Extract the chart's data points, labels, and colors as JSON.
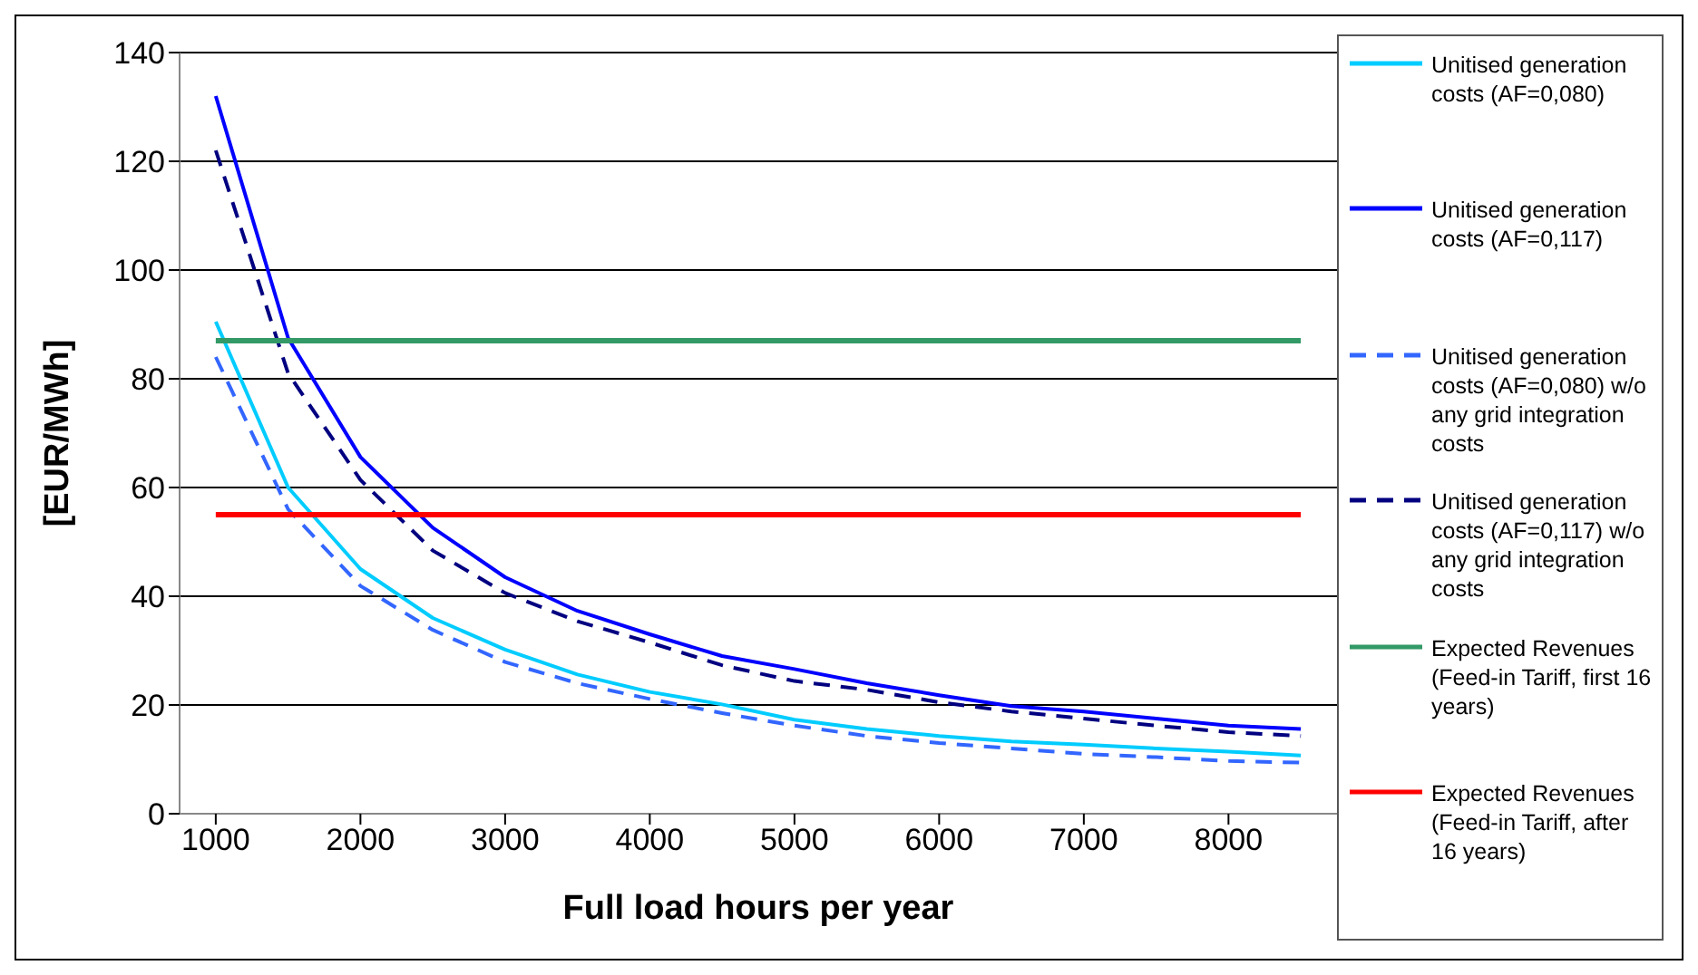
{
  "chart_data": {
    "type": "line",
    "xlabel": "Full load hours per year",
    "ylabel": "[EUR/MWh]",
    "x": [
      1000,
      1500,
      2000,
      2500,
      3000,
      3500,
      4000,
      4500,
      5000,
      5500,
      6000,
      6500,
      7000,
      7500,
      8000,
      8500
    ],
    "series": [
      {
        "name": "Unitised generation costs (AF=0,080)",
        "color": "#00ccff",
        "line_style": "solid",
        "values": [
          90.5,
          60,
          45,
          36,
          30.2,
          25.6,
          22.4,
          20.1,
          17.3,
          15.6,
          14.3,
          13.3,
          12.7,
          12,
          11.4,
          10.7
        ]
      },
      {
        "name": "Unitised generation costs (AF=0,117)",
        "color": "#0000ff",
        "line_style": "solid",
        "values": [
          132,
          87.5,
          65.6,
          52.6,
          43.5,
          37.3,
          33,
          29,
          26.6,
          24,
          21.8,
          19.8,
          18.8,
          17.5,
          16.2,
          15.6
        ]
      },
      {
        "name": "Unitised generation costs (AF=0,080) w/o any grid integration costs",
        "color": "#3366ff",
        "line_style": "dashed",
        "values": [
          84,
          56,
          41.9,
          33.8,
          27.9,
          24,
          21.1,
          18.5,
          16.2,
          14.3,
          13,
          12,
          11,
          10.4,
          9.7,
          9.4
        ]
      },
      {
        "name": "Unitised generation costs (AF=0,117) w/o any grid integration costs",
        "color": "#000080",
        "line_style": "dashed",
        "values": [
          122,
          81,
          61.4,
          48.4,
          40.6,
          35.4,
          31.5,
          27.3,
          24.4,
          22.8,
          20.5,
          18.8,
          17.5,
          16.2,
          15,
          14.3
        ]
      },
      {
        "name": "Expected Revenues (Feed-in Tariff, first 16 years)",
        "color": "#339966",
        "line_style": "solid",
        "values": [
          87,
          87,
          87,
          87,
          87,
          87,
          87,
          87,
          87,
          87,
          87,
          87,
          87,
          87,
          87,
          87
        ]
      },
      {
        "name": "Expected Revenues (Feed-in Tariff, after 16 years)",
        "color": "#ff0000",
        "line_style": "solid",
        "values": [
          55,
          55,
          55,
          55,
          55,
          55,
          55,
          55,
          55,
          55,
          55,
          55,
          55,
          55,
          55,
          55
        ]
      }
    ],
    "xlim": [
      750,
      8750
    ],
    "xticks": [
      1000,
      2000,
      3000,
      4000,
      5000,
      6000,
      7000,
      8000
    ],
    "ylim": [
      0,
      140
    ],
    "yticks": [
      0,
      20,
      40,
      60,
      80,
      100,
      120,
      140
    ],
    "grid": "y",
    "legend": "right",
    "marker": "none"
  }
}
